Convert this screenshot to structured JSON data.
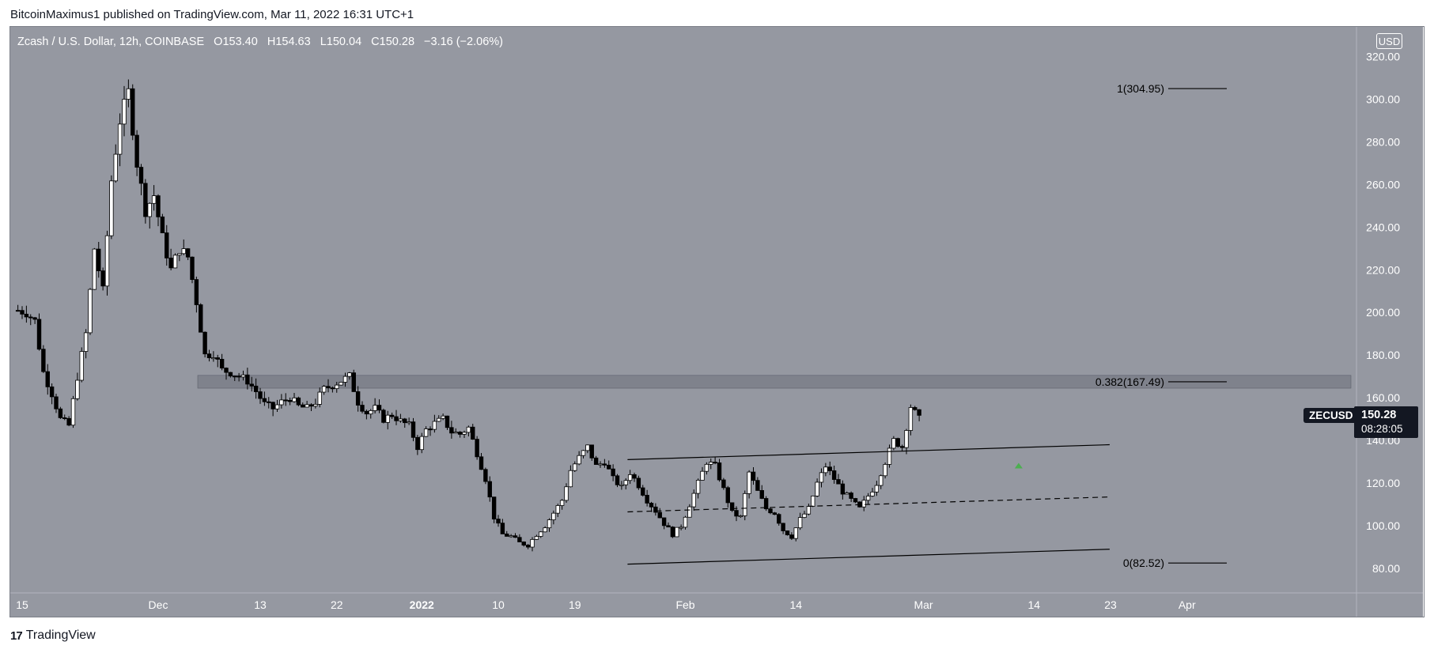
{
  "header": {
    "publisher_line": "BitcoinMaximus1 published on TradingView.com, Mar 11, 2022 16:31 UTC+1"
  },
  "legend": {
    "title": "Zcash / U.S. Dollar, 12h, COINBASE",
    "o_label": "O",
    "o": "153.40",
    "h_label": "H",
    "h": "154.63",
    "l_label": "L",
    "l": "150.04",
    "c_label": "C",
    "c": "150.28",
    "change": "−3.16 (−2.06%)"
  },
  "currency_button": "USD",
  "symbol_tag": "ZECUSD",
  "last_price": "150.28",
  "countdown": "08:28:05",
  "footer": {
    "brand": "TradingView",
    "logo": "17"
  },
  "colors": {
    "plot_bg": "#9598a1",
    "axis_bg": "#ffffff",
    "bull": "#ffffff",
    "bear": "#000000",
    "zone": "#787b86",
    "marker": "#4caf50"
  },
  "chart_data": {
    "type": "candlestick",
    "symbol": "ZECUSD",
    "interval": "12h",
    "ylim": [
      73,
      328
    ],
    "y_ticks": [
      "80.00",
      "100.00",
      "120.00",
      "140.00",
      "160.00",
      "180.00",
      "200.00",
      "220.00",
      "240.00",
      "260.00",
      "280.00",
      "300.00",
      "320.00"
    ],
    "x_ticks": [
      {
        "label": "15",
        "day": 0
      },
      {
        "label": "Dec",
        "day": 16
      },
      {
        "label": "13",
        "day": 28
      },
      {
        "label": "22",
        "day": 37
      },
      {
        "label": "2022",
        "day": 47
      },
      {
        "label": "10",
        "day": 56
      },
      {
        "label": "19",
        "day": 65
      },
      {
        "label": "Feb",
        "day": 78
      },
      {
        "label": "14",
        "day": 91
      },
      {
        "label": "Mar",
        "day": 106
      },
      {
        "label": "14",
        "day": 119
      },
      {
        "label": "23",
        "day": 128
      },
      {
        "label": "Apr",
        "day": 137
      }
    ],
    "fib_levels": [
      {
        "label": "1(304.95)",
        "value": 304.95
      },
      {
        "label": "0.382(167.49)",
        "value": 167.49
      },
      {
        "label": "0(82.52)",
        "value": 82.52
      }
    ],
    "resistance_zone": [
      164.5,
      170.5
    ],
    "channel": {
      "upper": [
        [
          71.2,
          131
        ],
        [
          127.9,
          138
        ]
      ],
      "middle": [
        [
          71.2,
          106.5
        ],
        [
          127.9,
          113.5
        ]
      ],
      "lower": [
        [
          71.2,
          82
        ],
        [
          127.9,
          89
        ]
      ]
    },
    "marker": {
      "day": 117.2,
      "value": 128,
      "type": "up-arrow"
    },
    "series_anchors": [
      [
        -0.5,
        201
      ],
      [
        0.5,
        200
      ],
      [
        1.5,
        196
      ],
      [
        2.5,
        172
      ],
      [
        3.5,
        162
      ],
      [
        4.5,
        150
      ],
      [
        5.5,
        147
      ],
      [
        6.5,
        170
      ],
      [
        7.5,
        190
      ],
      [
        8.5,
        230
      ],
      [
        9.5,
        210
      ],
      [
        10.5,
        262
      ],
      [
        11.5,
        290
      ],
      [
        12.5,
        303
      ],
      [
        13.5,
        270
      ],
      [
        14.5,
        248
      ],
      [
        15.5,
        255
      ],
      [
        16.5,
        235
      ],
      [
        17.5,
        220
      ],
      [
        18.5,
        230
      ],
      [
        19.5,
        226
      ],
      [
        20.5,
        205
      ],
      [
        21.5,
        180
      ],
      [
        22.5,
        181
      ],
      [
        23.5,
        173
      ],
      [
        24.5,
        172
      ],
      [
        25.5,
        170
      ],
      [
        26.5,
        168
      ],
      [
        27.5,
        163
      ],
      [
        28.5,
        157
      ],
      [
        29.5,
        155
      ],
      [
        30.5,
        158
      ],
      [
        31.5,
        160
      ],
      [
        32.5,
        156
      ],
      [
        33.5,
        155
      ],
      [
        34.5,
        158
      ],
      [
        35.5,
        164
      ],
      [
        36.5,
        166
      ],
      [
        37.5,
        168
      ],
      [
        38.5,
        170
      ],
      [
        39.5,
        158
      ],
      [
        40.5,
        153
      ],
      [
        41.5,
        155
      ],
      [
        42.5,
        150
      ],
      [
        43.5,
        152
      ],
      [
        44.5,
        149
      ],
      [
        45.5,
        147
      ],
      [
        46.5,
        137
      ],
      [
        47.5,
        145
      ],
      [
        48.5,
        148
      ],
      [
        49.5,
        150
      ],
      [
        50.5,
        144
      ],
      [
        51.5,
        143
      ],
      [
        52.5,
        146
      ],
      [
        53.5,
        134
      ],
      [
        54.5,
        122
      ],
      [
        55.5,
        104
      ],
      [
        56.5,
        96
      ],
      [
        57.5,
        95
      ],
      [
        58.5,
        92
      ],
      [
        59.5,
        91
      ],
      [
        60.5,
        96
      ],
      [
        61.5,
        100
      ],
      [
        62.5,
        106
      ],
      [
        63.5,
        112
      ],
      [
        64.5,
        126
      ],
      [
        65.5,
        132
      ],
      [
        66.5,
        137
      ],
      [
        67.5,
        128
      ],
      [
        68.5,
        130
      ],
      [
        69.5,
        122
      ],
      [
        70.5,
        118
      ],
      [
        71.5,
        125
      ],
      [
        72.5,
        119
      ],
      [
        73.5,
        112
      ],
      [
        74.5,
        107
      ],
      [
        75.5,
        101
      ],
      [
        76.5,
        96
      ],
      [
        77.5,
        100
      ],
      [
        78.5,
        110
      ],
      [
        79.5,
        120
      ],
      [
        80.5,
        130
      ],
      [
        81.5,
        128
      ],
      [
        82.5,
        117
      ],
      [
        83.5,
        106
      ],
      [
        84.5,
        104
      ],
      [
        85.5,
        125
      ],
      [
        86.5,
        116
      ],
      [
        87.5,
        108
      ],
      [
        88.5,
        106
      ],
      [
        89.5,
        98
      ],
      [
        90.5,
        95
      ],
      [
        91.5,
        103
      ],
      [
        92.5,
        108
      ],
      [
        93.5,
        120
      ],
      [
        94.5,
        128
      ],
      [
        95.5,
        122
      ],
      [
        96.5,
        116
      ],
      [
        97.5,
        112
      ],
      [
        98.5,
        108
      ],
      [
        99.5,
        114
      ],
      [
        100.5,
        120
      ],
      [
        101.5,
        130
      ],
      [
        102.5,
        140
      ],
      [
        103.5,
        137
      ],
      [
        104.5,
        156
      ],
      [
        105.5,
        150
      ]
    ]
  }
}
